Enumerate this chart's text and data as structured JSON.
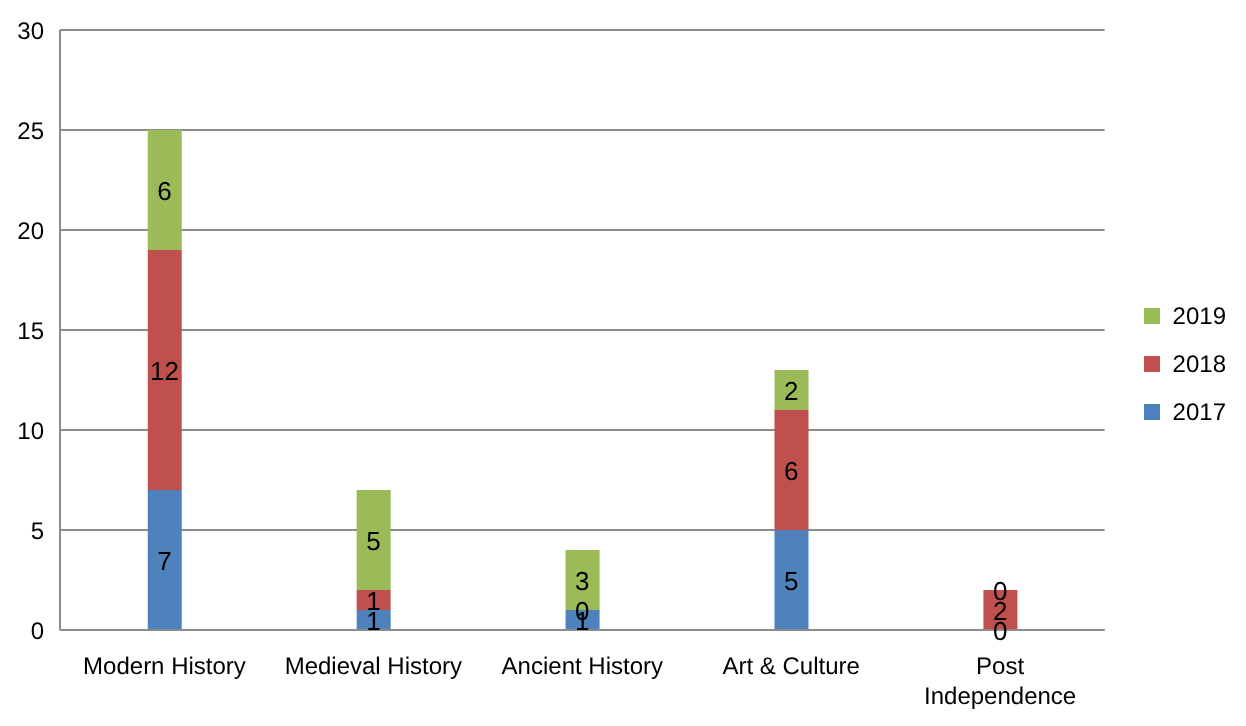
{
  "chart_data": {
    "type": "bar",
    "categories": [
      "Modern History",
      "Medieval History",
      "Ancient History",
      "Art & Culture",
      "Post Independence"
    ],
    "series": [
      {
        "name": "2017",
        "color": "#4f81bd",
        "values": [
          7,
          1,
          1,
          5,
          0
        ]
      },
      {
        "name": "2018",
        "color": "#c0504d",
        "values": [
          12,
          1,
          0,
          6,
          2
        ]
      },
      {
        "name": "2019",
        "color": "#9bbb59",
        "values": [
          6,
          5,
          3,
          2,
          0
        ]
      }
    ],
    "stacked": true,
    "ylim": [
      0,
      30
    ],
    "yticks": [
      0,
      5,
      10,
      15,
      20,
      25,
      30
    ],
    "grid": "y",
    "legend": "right",
    "data_labels": true
  }
}
